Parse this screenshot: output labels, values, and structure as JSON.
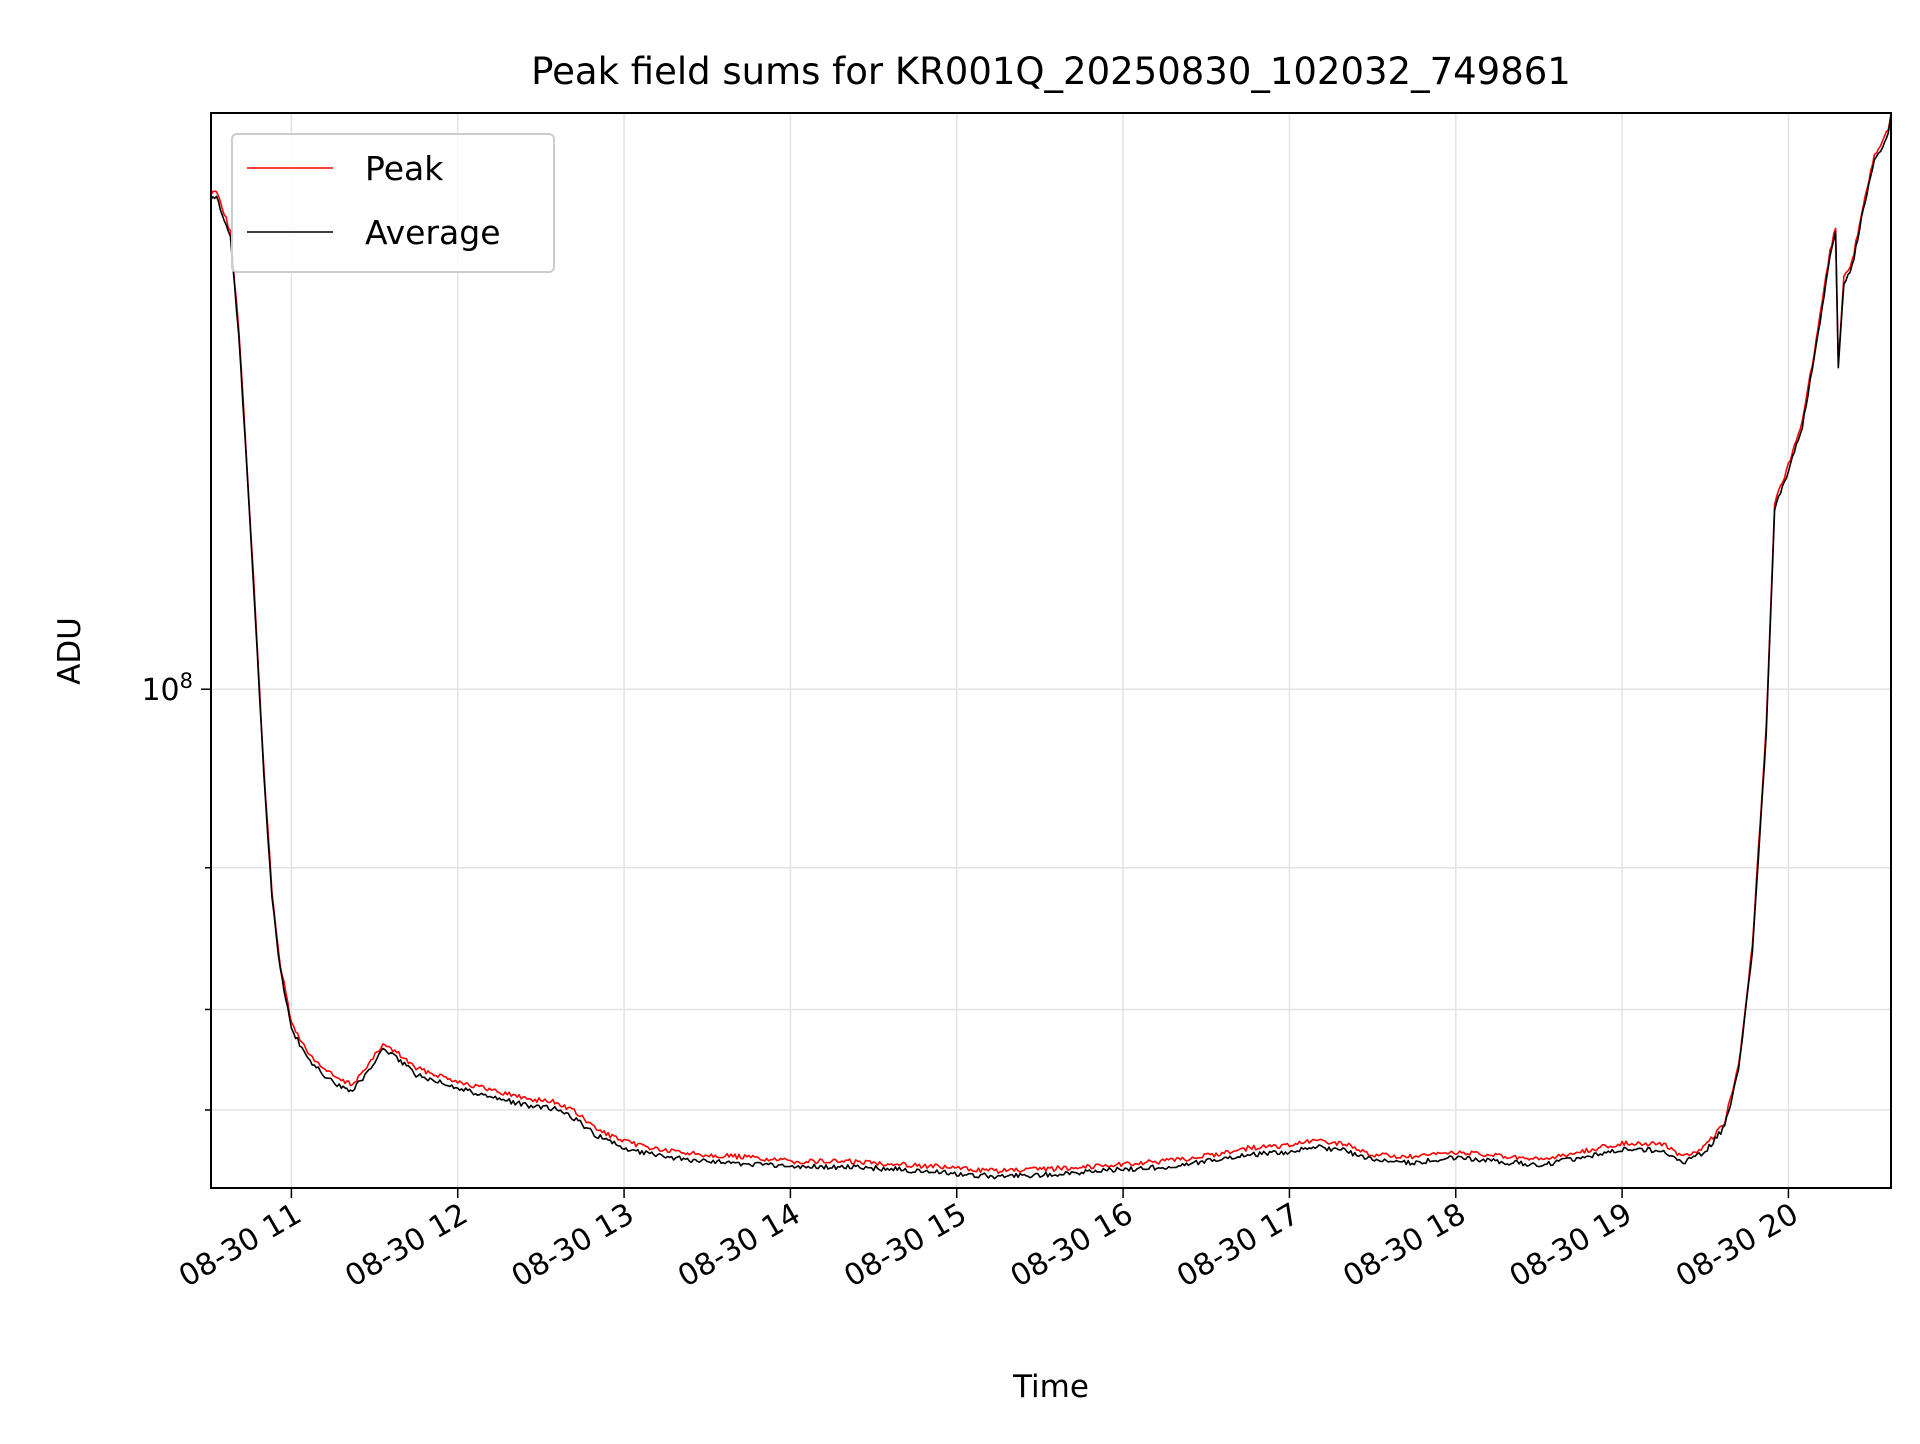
{
  "chart_data": {
    "type": "line",
    "title": "Peak field sums for KR001Q_20250830_102032_749861",
    "xlabel": "Time",
    "ylabel": "ADU",
    "x_axis": "time",
    "x_range": [
      "2025-08-30 10:31",
      "2025-08-30 20:37"
    ],
    "x_ticks": [
      {
        "x": "2025-08-30 11:00",
        "label": "08-30 11"
      },
      {
        "x": "2025-08-30 12:00",
        "label": "08-30 12"
      },
      {
        "x": "2025-08-30 13:00",
        "label": "08-30 13"
      },
      {
        "x": "2025-08-30 14:00",
        "label": "08-30 14"
      },
      {
        "x": "2025-08-30 15:00",
        "label": "08-30 15"
      },
      {
        "x": "2025-08-30 16:00",
        "label": "08-30 16"
      },
      {
        "x": "2025-08-30 17:00",
        "label": "08-30 17"
      },
      {
        "x": "2025-08-30 18:00",
        "label": "08-30 18"
      },
      {
        "x": "2025-08-30 19:00",
        "label": "08-30 19"
      },
      {
        "x": "2025-08-30 20:00",
        "label": "08-30 20"
      }
    ],
    "y_scale": "log",
    "ylim": [
      24000000,
      520000000
    ],
    "y_major_ticks": [
      {
        "value": 100000000,
        "label_base": "10",
        "label_exp": "8"
      }
    ],
    "y_minor_ticks": [
      30000000,
      40000000,
      60000000
    ],
    "grid": true,
    "legend_position": "top-left",
    "series": [
      {
        "name": "Peak",
        "color": "#ff0000",
        "points": [
          [
            "2025-08-30 10:31",
            412000000
          ],
          [
            "2025-08-30 10:33",
            418000000
          ],
          [
            "2025-08-30 10:35",
            398000000
          ],
          [
            "2025-08-30 10:38",
            370000000
          ],
          [
            "2025-08-30 10:41",
            280000000
          ],
          [
            "2025-08-30 10:44",
            190000000
          ],
          [
            "2025-08-30 10:47",
            125000000
          ],
          [
            "2025-08-30 10:50",
            80000000
          ],
          [
            "2025-08-30 10:53",
            56000000
          ],
          [
            "2025-08-30 10:56",
            45500000
          ],
          [
            "2025-08-30 11:00",
            38500000
          ],
          [
            "2025-08-30 11:06",
            35300000
          ],
          [
            "2025-08-30 11:12",
            33700000
          ],
          [
            "2025-08-30 11:18",
            32600000
          ],
          [
            "2025-08-30 11:22",
            32300000
          ],
          [
            "2025-08-30 11:28",
            34200000
          ],
          [
            "2025-08-30 11:33",
            36200000
          ],
          [
            "2025-08-30 11:38",
            35400000
          ],
          [
            "2025-08-30 11:45",
            33800000
          ],
          [
            "2025-08-30 11:55",
            33000000
          ],
          [
            "2025-08-30 12:05",
            32200000
          ],
          [
            "2025-08-30 12:15",
            31600000
          ],
          [
            "2025-08-30 12:25",
            31000000
          ],
          [
            "2025-08-30 12:35",
            30700000
          ],
          [
            "2025-08-30 12:42",
            29900000
          ],
          [
            "2025-08-30 12:50",
            28400000
          ],
          [
            "2025-08-30 13:00",
            27400000
          ],
          [
            "2025-08-30 13:15",
            26700000
          ],
          [
            "2025-08-30 13:30",
            26400000
          ],
          [
            "2025-08-30 13:45",
            26200000
          ],
          [
            "2025-08-30 14:00",
            25900000
          ],
          [
            "2025-08-30 14:20",
            25900000
          ],
          [
            "2025-08-30 14:40",
            25700000
          ],
          [
            "2025-08-30 15:00",
            25400000
          ],
          [
            "2025-08-30 15:15",
            25200000
          ],
          [
            "2025-08-30 15:30",
            25300000
          ],
          [
            "2025-08-30 15:45",
            25500000
          ],
          [
            "2025-08-30 16:00",
            25700000
          ],
          [
            "2025-08-30 16:15",
            25900000
          ],
          [
            "2025-08-30 16:30",
            26300000
          ],
          [
            "2025-08-30 16:45",
            26900000
          ],
          [
            "2025-08-30 17:00",
            27100000
          ],
          [
            "2025-08-30 17:10",
            27500000
          ],
          [
            "2025-08-30 17:20",
            27200000
          ],
          [
            "2025-08-30 17:30",
            26400000
          ],
          [
            "2025-08-30 17:45",
            26200000
          ],
          [
            "2025-08-30 18:00",
            26600000
          ],
          [
            "2025-08-30 18:15",
            26300000
          ],
          [
            "2025-08-30 18:30",
            26000000
          ],
          [
            "2025-08-30 18:45",
            26600000
          ],
          [
            "2025-08-30 19:00",
            27300000
          ],
          [
            "2025-08-30 19:15",
            27200000
          ],
          [
            "2025-08-30 19:22",
            26200000
          ],
          [
            "2025-08-30 19:30",
            27000000
          ],
          [
            "2025-08-30 19:37",
            29000000
          ],
          [
            "2025-08-30 19:42",
            34000000
          ],
          [
            "2025-08-30 19:47",
            48000000
          ],
          [
            "2025-08-30 19:52",
            90000000
          ],
          [
            "2025-08-30 19:55",
            170000000
          ],
          [
            "2025-08-30 20:00",
            190000000
          ],
          [
            "2025-08-30 20:05",
            215000000
          ],
          [
            "2025-08-30 20:10",
            270000000
          ],
          [
            "2025-08-30 20:15",
            350000000
          ],
          [
            "2025-08-30 20:17",
            375000000
          ],
          [
            "2025-08-30 20:18",
            255000000
          ],
          [
            "2025-08-30 20:20",
            325000000
          ],
          [
            "2025-08-30 20:23",
            340000000
          ],
          [
            "2025-08-30 20:27",
            400000000
          ],
          [
            "2025-08-30 20:31",
            460000000
          ],
          [
            "2025-08-30 20:34",
            480000000
          ],
          [
            "2025-08-30 20:36",
            495000000
          ],
          [
            "2025-08-30 20:37",
            520000000
          ]
        ]
      },
      {
        "name": "Average",
        "color": "#000000",
        "points": [
          [
            "2025-08-30 10:31",
            405000000
          ],
          [
            "2025-08-30 10:33",
            411000000
          ],
          [
            "2025-08-30 10:35",
            391000000
          ],
          [
            "2025-08-30 10:38",
            364000000
          ],
          [
            "2025-08-30 10:41",
            276000000
          ],
          [
            "2025-08-30 10:44",
            187000000
          ],
          [
            "2025-08-30 10:47",
            123000000
          ],
          [
            "2025-08-30 10:50",
            79000000
          ],
          [
            "2025-08-30 10:53",
            55000000
          ],
          [
            "2025-08-30 10:56",
            44800000
          ],
          [
            "2025-08-30 11:00",
            37900000
          ],
          [
            "2025-08-30 11:06",
            34700000
          ],
          [
            "2025-08-30 11:12",
            33100000
          ],
          [
            "2025-08-30 11:18",
            32000000
          ],
          [
            "2025-08-30 11:22",
            31700000
          ],
          [
            "2025-08-30 11:28",
            33600000
          ],
          [
            "2025-08-30 11:33",
            35600000
          ],
          [
            "2025-08-30 11:38",
            34800000
          ],
          [
            "2025-08-30 11:45",
            33200000
          ],
          [
            "2025-08-30 11:55",
            32400000
          ],
          [
            "2025-08-30 12:05",
            31600000
          ],
          [
            "2025-08-30 12:15",
            31000000
          ],
          [
            "2025-08-30 12:25",
            30400000
          ],
          [
            "2025-08-30 12:35",
            30100000
          ],
          [
            "2025-08-30 12:42",
            29300000
          ],
          [
            "2025-08-30 12:50",
            27900000
          ],
          [
            "2025-08-30 13:00",
            26900000
          ],
          [
            "2025-08-30 13:15",
            26200000
          ],
          [
            "2025-08-30 13:30",
            25900000
          ],
          [
            "2025-08-30 13:45",
            25700000
          ],
          [
            "2025-08-30 14:00",
            25500000
          ],
          [
            "2025-08-30 14:20",
            25500000
          ],
          [
            "2025-08-30 14:40",
            25300000
          ],
          [
            "2025-08-30 15:00",
            25000000
          ],
          [
            "2025-08-30 15:15",
            24800000
          ],
          [
            "2025-08-30 15:30",
            24900000
          ],
          [
            "2025-08-30 15:45",
            25100000
          ],
          [
            "2025-08-30 16:00",
            25300000
          ],
          [
            "2025-08-30 16:15",
            25500000
          ],
          [
            "2025-08-30 16:30",
            25900000
          ],
          [
            "2025-08-30 16:45",
            26400000
          ],
          [
            "2025-08-30 17:00",
            26600000
          ],
          [
            "2025-08-30 17:10",
            27000000
          ],
          [
            "2025-08-30 17:20",
            26700000
          ],
          [
            "2025-08-30 17:30",
            26000000
          ],
          [
            "2025-08-30 17:45",
            25800000
          ],
          [
            "2025-08-30 18:00",
            26200000
          ],
          [
            "2025-08-30 18:15",
            25900000
          ],
          [
            "2025-08-30 18:30",
            25600000
          ],
          [
            "2025-08-30 18:45",
            26200000
          ],
          [
            "2025-08-30 19:00",
            26800000
          ],
          [
            "2025-08-30 19:15",
            26700000
          ],
          [
            "2025-08-30 19:22",
            25800000
          ],
          [
            "2025-08-30 19:30",
            26600000
          ],
          [
            "2025-08-30 19:37",
            28600000
          ],
          [
            "2025-08-30 19:42",
            33500000
          ],
          [
            "2025-08-30 19:47",
            47000000
          ],
          [
            "2025-08-30 19:52",
            88000000
          ],
          [
            "2025-08-30 19:55",
            167000000
          ],
          [
            "2025-08-30 20:00",
            187000000
          ],
          [
            "2025-08-30 20:05",
            212000000
          ],
          [
            "2025-08-30 20:10",
            266000000
          ],
          [
            "2025-08-30 20:15",
            345000000
          ],
          [
            "2025-08-30 20:17",
            370000000
          ],
          [
            "2025-08-30 20:18",
            251000000
          ],
          [
            "2025-08-30 20:20",
            320000000
          ],
          [
            "2025-08-30 20:23",
            335000000
          ],
          [
            "2025-08-30 20:27",
            395000000
          ],
          [
            "2025-08-30 20:31",
            454000000
          ],
          [
            "2025-08-30 20:34",
            474000000
          ],
          [
            "2025-08-30 20:36",
            489000000
          ],
          [
            "2025-08-30 20:37",
            515000000
          ]
        ]
      }
    ]
  }
}
